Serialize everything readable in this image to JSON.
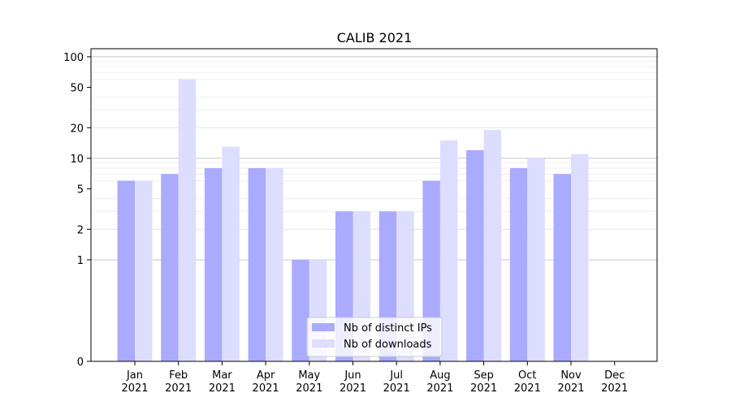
{
  "chart_data": {
    "type": "bar",
    "title": "CALIB 2021",
    "xlabel": "",
    "ylabel": "",
    "yscale": "symlog",
    "ylim": [
      0,
      120
    ],
    "yticks": [
      0,
      1,
      2,
      5,
      10,
      20,
      50,
      100
    ],
    "ytick_labels": [
      "0",
      "1",
      "2",
      "5",
      "10",
      "20",
      "50",
      "100"
    ],
    "grid": true,
    "legend_position": "bottom-center",
    "categories": [
      [
        "Jan",
        "2021"
      ],
      [
        "Feb",
        "2021"
      ],
      [
        "Mar",
        "2021"
      ],
      [
        "Apr",
        "2021"
      ],
      [
        "May",
        "2021"
      ],
      [
        "Jun",
        "2021"
      ],
      [
        "Jul",
        "2021"
      ],
      [
        "Aug",
        "2021"
      ],
      [
        "Sep",
        "2021"
      ],
      [
        "Oct",
        "2021"
      ],
      [
        "Nov",
        "2021"
      ],
      [
        "Dec",
        "2021"
      ]
    ],
    "series": [
      {
        "name": "Nb of distinct IPs",
        "color": "#aaaaff",
        "values": [
          6,
          7,
          8,
          8,
          1,
          3,
          3,
          6,
          12,
          8,
          7,
          0
        ]
      },
      {
        "name": "Nb of downloads",
        "color": "#ddddff",
        "values": [
          6,
          60,
          13,
          8,
          1,
          3,
          3,
          15,
          19,
          10,
          11,
          0
        ]
      }
    ]
  }
}
